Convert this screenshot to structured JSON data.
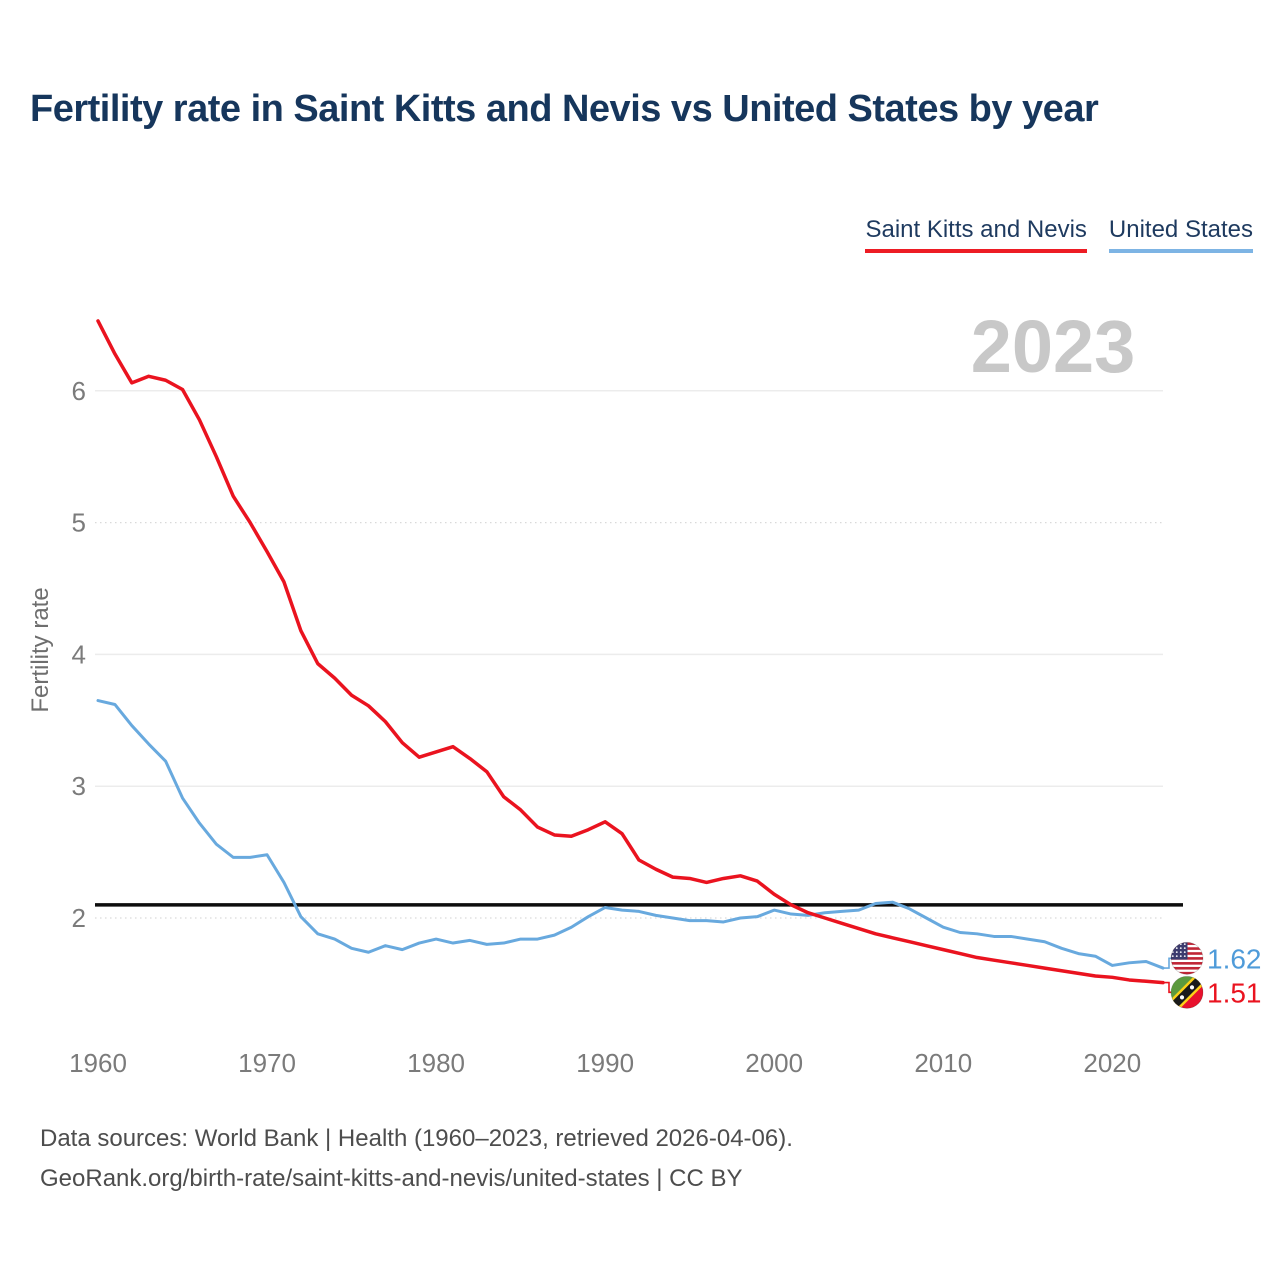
{
  "header": {
    "title": "Fertility rate in Saint Kitts and Nevis vs United States by year"
  },
  "legend": {
    "items": [
      {
        "label": "Saint Kitts and Nevis",
        "color": "#ed1c24"
      },
      {
        "label": "United States",
        "color": "#7db4e4"
      }
    ]
  },
  "watermark": "2023",
  "chart_data": {
    "type": "line",
    "title": "Fertility rate in Saint Kitts and Nevis vs United States by year",
    "xlabel": "",
    "ylabel": "Fertility rate",
    "grid": true,
    "legend_position": "top-right",
    "xlim": [
      1960,
      2023
    ],
    "ylim": [
      1.4,
      6.6
    ],
    "xticks": [
      1960,
      1970,
      1980,
      1990,
      2000,
      2010,
      2020
    ],
    "yticks": [
      2,
      3,
      4,
      5,
      6
    ],
    "reference_line": {
      "value": 2.1,
      "color": "#0d0d0d"
    },
    "x": [
      1960,
      1961,
      1962,
      1963,
      1964,
      1965,
      1966,
      1967,
      1968,
      1969,
      1970,
      1971,
      1972,
      1973,
      1974,
      1975,
      1976,
      1977,
      1978,
      1979,
      1980,
      1981,
      1982,
      1983,
      1984,
      1985,
      1986,
      1987,
      1988,
      1989,
      1990,
      1991,
      1992,
      1993,
      1994,
      1995,
      1996,
      1997,
      1998,
      1999,
      2000,
      2001,
      2002,
      2003,
      2004,
      2005,
      2006,
      2007,
      2008,
      2009,
      2010,
      2011,
      2012,
      2013,
      2014,
      2015,
      2016,
      2017,
      2018,
      2019,
      2020,
      2021,
      2022,
      2023
    ],
    "series": [
      {
        "id": "united-states",
        "name": "United States",
        "color": "#68a9de",
        "width": 3,
        "end_label": "1.62",
        "end_label_color": "#4f9bd9",
        "icon": "us-flag",
        "values": [
          3.65,
          3.62,
          3.46,
          3.32,
          3.19,
          2.91,
          2.72,
          2.56,
          2.46,
          2.46,
          2.48,
          2.27,
          2.01,
          1.88,
          1.84,
          1.77,
          1.74,
          1.79,
          1.76,
          1.81,
          1.84,
          1.81,
          1.83,
          1.8,
          1.81,
          1.84,
          1.84,
          1.87,
          1.93,
          2.01,
          2.08,
          2.06,
          2.05,
          2.02,
          2.0,
          1.98,
          1.98,
          1.97,
          2.0,
          2.01,
          2.06,
          2.03,
          2.02,
          2.04,
          2.05,
          2.06,
          2.11,
          2.12,
          2.07,
          2.0,
          1.93,
          1.89,
          1.88,
          1.86,
          1.86,
          1.84,
          1.82,
          1.77,
          1.73,
          1.71,
          1.64,
          1.66,
          1.67,
          1.62
        ]
      },
      {
        "id": "saint-kitts-and-nevis",
        "name": "Saint Kitts and Nevis",
        "color": "#ea131f",
        "width": 3.5,
        "end_label": "1.51",
        "end_label_color": "#ea131f",
        "icon": "saint-kitts-nevis-flag",
        "values": [
          6.53,
          6.28,
          6.06,
          6.11,
          6.08,
          6.01,
          5.78,
          5.5,
          5.2,
          5.0,
          4.78,
          4.55,
          4.18,
          3.93,
          3.82,
          3.69,
          3.61,
          3.49,
          3.33,
          3.22,
          3.26,
          3.3,
          3.21,
          3.11,
          2.92,
          2.82,
          2.69,
          2.63,
          2.62,
          2.67,
          2.73,
          2.64,
          2.44,
          2.37,
          2.31,
          2.3,
          2.27,
          2.3,
          2.32,
          2.28,
          2.18,
          2.1,
          2.04,
          2.0,
          1.96,
          1.92,
          1.88,
          1.85,
          1.82,
          1.79,
          1.76,
          1.73,
          1.7,
          1.68,
          1.66,
          1.64,
          1.62,
          1.6,
          1.58,
          1.56,
          1.55,
          1.53,
          1.52,
          1.51
        ]
      }
    ]
  },
  "footer": {
    "line1": "Data sources: World Bank | Health (1960–2023, retrieved 2026-04-06).",
    "line2": "GeoRank.org/birth-rate/saint-kitts-and-nevis/united-states | CC BY"
  }
}
